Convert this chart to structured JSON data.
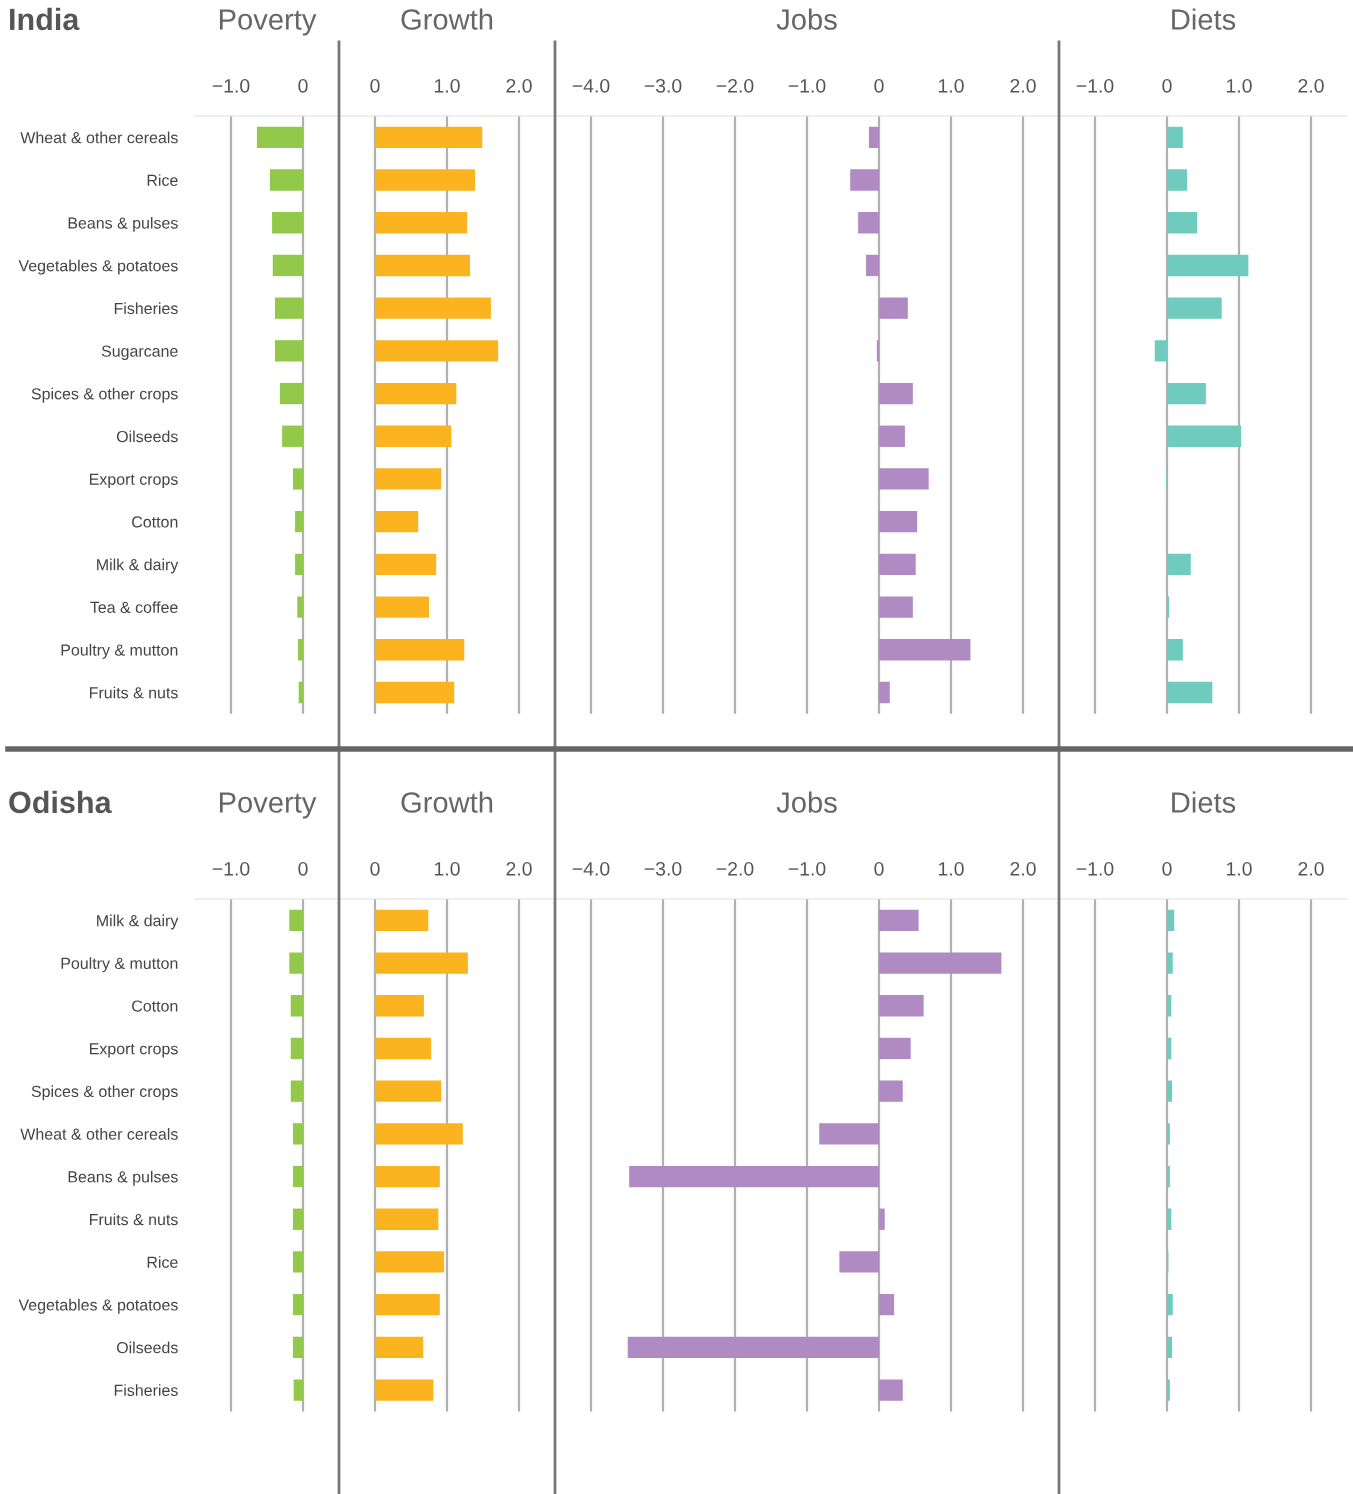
{
  "chart_data": [
    {
      "type": "bar",
      "orientation": "horizontal",
      "title": "Poverty",
      "annotations": [
        "India"
      ],
      "categories": [
        "Wheat & other cereals",
        "Rice",
        "Beans & pulses",
        "Vegetables & potatoes",
        "Fisheries",
        "Sugarcane",
        "Spices & other crops",
        "Oilseeds",
        "Export crops",
        "Cotton",
        "Milk & dairy",
        "Tea & coffee",
        "Poultry & mutton",
        "Fruits & nuts"
      ],
      "values": [
        -0.64,
        -0.46,
        -0.43,
        -0.42,
        -0.39,
        -0.39,
        -0.32,
        -0.29,
        -0.14,
        -0.11,
        -0.11,
        -0.08,
        -0.07,
        -0.06
      ],
      "color": "#92c94a",
      "xlim": [
        -1.5,
        0.5
      ],
      "xticks": [
        {
          "value": -1,
          "label": "−1.0"
        },
        0
      ],
      "grid": "x"
    },
    {
      "type": "bar",
      "orientation": "horizontal",
      "title": "Growth",
      "values": [
        1.49,
        1.39,
        1.28,
        1.32,
        1.61,
        1.71,
        1.13,
        1.06,
        0.92,
        0.6,
        0.85,
        0.75,
        1.24,
        1.1
      ],
      "color": "#fbb41f",
      "xlim": [
        -0.5,
        2.5
      ],
      "xticks": [
        0,
        {
          "value": 1,
          "label": "1.0"
        },
        {
          "value": 2,
          "label": "2.0"
        }
      ],
      "grid": "x"
    },
    {
      "type": "bar",
      "orientation": "horizontal",
      "title": "Jobs",
      "values": [
        -0.14,
        -0.4,
        -0.29,
        -0.18,
        0.4,
        -0.03,
        0.47,
        0.36,
        0.69,
        0.53,
        0.51,
        0.47,
        1.27,
        0.15
      ],
      "color": "#b08ac2",
      "xlim": [
        -4.5,
        2.5
      ],
      "xticks": [
        {
          "value": -4,
          "label": "−4.0"
        },
        {
          "value": -3,
          "label": "−3.0"
        },
        {
          "value": -2,
          "label": "−2.0"
        },
        {
          "value": -1,
          "label": "−1.0"
        },
        0,
        {
          "value": 1,
          "label": "1.0"
        },
        {
          "value": 2,
          "label": "2.0"
        }
      ],
      "grid": "x"
    },
    {
      "type": "bar",
      "orientation": "horizontal",
      "title": "Diets",
      "values": [
        0.22,
        0.28,
        0.42,
        1.13,
        0.76,
        -0.17,
        0.54,
        1.03,
        -0.01,
        0,
        0.33,
        0.03,
        0.22,
        0.63
      ],
      "color": "#6ecbbd",
      "xlim": [
        -1.5,
        2.5
      ],
      "xticks": [
        {
          "value": -1,
          "label": "−1.0"
        },
        0,
        {
          "value": 1,
          "label": "1.0"
        },
        {
          "value": 2,
          "label": "2.0"
        }
      ],
      "grid": "x"
    },
    {
      "type": "bar",
      "orientation": "horizontal",
      "title": "Poverty",
      "annotations": [
        "Odisha"
      ],
      "categories": [
        "Milk & dairy",
        "Poultry & mutton",
        "Cotton",
        "Export crops",
        "Spices & other crops",
        "Wheat & other cereals",
        "Beans & pulses",
        "Fruits & nuts",
        "Rice",
        "Vegetables & potatoes",
        "Oilseeds",
        "Fisheries"
      ],
      "values": [
        -0.19,
        -0.19,
        -0.17,
        -0.17,
        -0.17,
        -0.14,
        -0.14,
        -0.14,
        -0.14,
        -0.14,
        -0.14,
        -0.13
      ],
      "color": "#92c94a",
      "xlim": [
        -1.5,
        0.5
      ],
      "xticks": [
        {
          "value": -1,
          "label": "−1.0"
        },
        0
      ],
      "grid": "x"
    },
    {
      "type": "bar",
      "orientation": "horizontal",
      "title": "Growth",
      "values": [
        0.74,
        1.29,
        0.68,
        0.78,
        0.92,
        1.22,
        0.9,
        0.88,
        0.96,
        0.9,
        0.67,
        0.81
      ],
      "color": "#fbb41f",
      "xlim": [
        -0.5,
        2.5
      ],
      "xticks": [
        0,
        {
          "value": 1,
          "label": "1.0"
        },
        {
          "value": 2,
          "label": "2.0"
        }
      ],
      "grid": "x"
    },
    {
      "type": "bar",
      "orientation": "horizontal",
      "title": "Jobs",
      "values": [
        0.55,
        1.7,
        0.62,
        0.44,
        0.33,
        -0.83,
        -3.47,
        0.08,
        -0.55,
        0.21,
        -3.49,
        0.33
      ],
      "color": "#b08ac2",
      "xlim": [
        -4.5,
        2.5
      ],
      "xticks": [
        {
          "value": -4,
          "label": "−4.0"
        },
        {
          "value": -3,
          "label": "−3.0"
        },
        {
          "value": -2,
          "label": "−2.0"
        },
        {
          "value": -1,
          "label": "−1.0"
        },
        0,
        {
          "value": 1,
          "label": "1.0"
        },
        {
          "value": 2,
          "label": "2.0"
        }
      ],
      "grid": "x"
    },
    {
      "type": "bar",
      "orientation": "horizontal",
      "title": "Diets",
      "values": [
        0.1,
        0.08,
        0.06,
        0.06,
        0.07,
        0.04,
        0.04,
        0.06,
        0.02,
        0.08,
        0.07,
        0.04
      ],
      "color": "#6ecbbd",
      "xlim": [
        -1.5,
        2.5
      ],
      "xticks": [
        {
          "value": -1,
          "label": "−1.0"
        },
        0,
        {
          "value": 1,
          "label": "1.0"
        },
        {
          "value": 2,
          "label": "2.0"
        }
      ],
      "grid": "x"
    }
  ]
}
